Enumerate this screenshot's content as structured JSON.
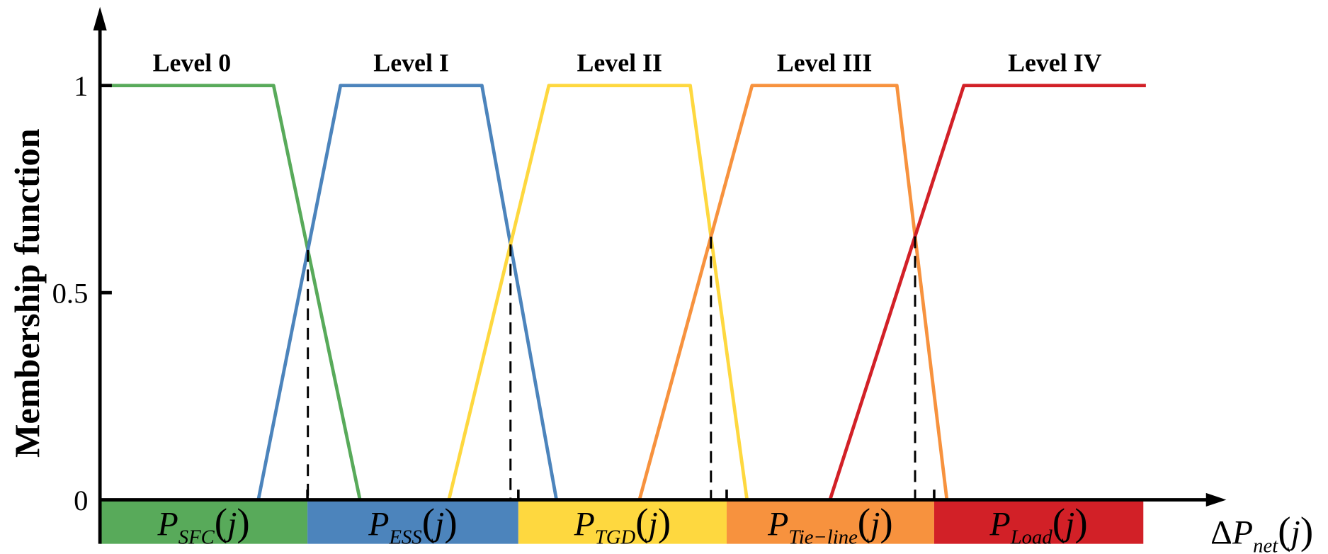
{
  "chart_data": {
    "type": "line",
    "ylabel": "Membership function",
    "xlabel": {
      "base": "ΔP",
      "sub": "net",
      "arg": "j"
    },
    "yticks": [
      {
        "value": 0,
        "label": "0"
      },
      {
        "value": 0.5,
        "label": "0.5"
      },
      {
        "value": 1,
        "label": "1"
      }
    ],
    "ylim": [
      0,
      1.2
    ],
    "xlim": [
      0,
      132
    ],
    "grid": false,
    "series": [
      {
        "name": "Level 0",
        "color": "#58AA5A",
        "points": [
          [
            1.2,
            1
          ],
          [
            20.5,
            1
          ],
          [
            30.7,
            0
          ]
        ]
      },
      {
        "name": "Level I",
        "color": "#4C84BC",
        "points": [
          [
            18.7,
            0
          ],
          [
            28.4,
            1
          ],
          [
            45.1,
            1
          ],
          [
            53.9,
            0
          ]
        ]
      },
      {
        "name": "Level II",
        "color": "#FED83F",
        "points": [
          [
            41.2,
            0
          ],
          [
            53,
            1
          ],
          [
            69.7,
            1
          ],
          [
            76.4,
            0
          ]
        ]
      },
      {
        "name": "Level III",
        "color": "#F7923E",
        "points": [
          [
            63.7,
            0
          ],
          [
            77,
            1
          ],
          [
            94.1,
            1
          ],
          [
            100,
            0
          ]
        ]
      },
      {
        "name": "Level IV",
        "color": "#D22027",
        "points": [
          [
            86.2,
            0
          ],
          [
            102,
            1
          ],
          [
            123.5,
            1
          ]
        ]
      }
    ],
    "crossover_dashes": [
      {
        "between": [
          0,
          1
        ]
      },
      {
        "between": [
          1,
          2
        ]
      },
      {
        "between": [
          2,
          3
        ]
      },
      {
        "between": [
          3,
          4
        ]
      }
    ],
    "regions": [
      {
        "base": "P",
        "sub": "SFC",
        "arg": "j",
        "color": "#58AA5A",
        "range": [
          0,
          24.5
        ]
      },
      {
        "base": "P",
        "sub": "ESS",
        "arg": "j",
        "color": "#4C84BC",
        "range": [
          24.5,
          49.4
        ]
      },
      {
        "base": "P",
        "sub": "TGD",
        "arg": "j",
        "color": "#FED83F",
        "range": [
          49.4,
          74
        ]
      },
      {
        "base": "P",
        "sub": "Tie−line",
        "arg": "j",
        "color": "#F7923E",
        "range": [
          74,
          98.5
        ]
      },
      {
        "base": "P",
        "sub": "Load",
        "arg": "j",
        "color": "#D22027",
        "range": [
          98.5,
          123.2
        ]
      }
    ]
  }
}
